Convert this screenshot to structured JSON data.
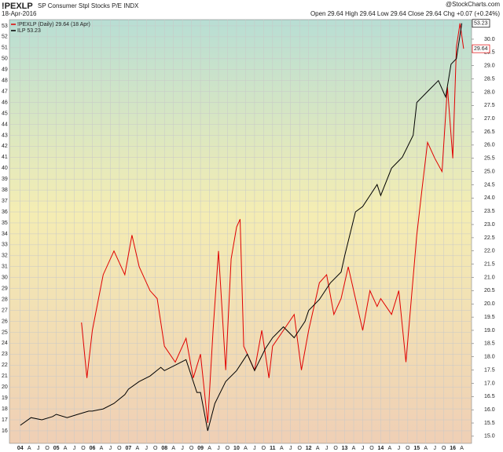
{
  "chart_data": {
    "type": "line",
    "title": "!PEXLP",
    "subtitle": "SP Consumer Stpl Stocks P/E INDX",
    "date": "18-Apr-2016",
    "quote": "Open 29.64  High 29.64  Low 29.64  Close 29.64  Chg +0.07 (+0.24%)",
    "watermark": "@StockCharts.com",
    "xlim": [
      2003.7,
      2016.52
    ],
    "xticks": [
      {
        "value": 2004,
        "label": "04"
      },
      {
        "value": 2004.25,
        "label": "A"
      },
      {
        "value": 2004.5,
        "label": "J"
      },
      {
        "value": 2004.75,
        "label": "O"
      },
      {
        "value": 2005,
        "label": "05"
      },
      {
        "value": 2005.25,
        "label": "A"
      },
      {
        "value": 2005.5,
        "label": "J"
      },
      {
        "value": 2005.75,
        "label": "O"
      },
      {
        "value": 2006,
        "label": "06"
      },
      {
        "value": 2006.25,
        "label": "A"
      },
      {
        "value": 2006.5,
        "label": "J"
      },
      {
        "value": 2006.75,
        "label": "O"
      },
      {
        "value": 2007,
        "label": "07"
      },
      {
        "value": 2007.25,
        "label": "A"
      },
      {
        "value": 2007.5,
        "label": "J"
      },
      {
        "value": 2007.75,
        "label": "O"
      },
      {
        "value": 2008,
        "label": "08"
      },
      {
        "value": 2008.25,
        "label": "A"
      },
      {
        "value": 2008.5,
        "label": "J"
      },
      {
        "value": 2008.75,
        "label": "O"
      },
      {
        "value": 2009,
        "label": "09"
      },
      {
        "value": 2009.25,
        "label": "A"
      },
      {
        "value": 2009.5,
        "label": "J"
      },
      {
        "value": 2009.75,
        "label": "O"
      },
      {
        "value": 2010,
        "label": "10"
      },
      {
        "value": 2010.25,
        "label": "A"
      },
      {
        "value": 2010.5,
        "label": "J"
      },
      {
        "value": 2010.75,
        "label": "O"
      },
      {
        "value": 2011,
        "label": "11"
      },
      {
        "value": 2011.25,
        "label": "A"
      },
      {
        "value": 2011.5,
        "label": "J"
      },
      {
        "value": 2011.75,
        "label": "O"
      },
      {
        "value": 2012,
        "label": "12"
      },
      {
        "value": 2012.25,
        "label": "A"
      },
      {
        "value": 2012.5,
        "label": "J"
      },
      {
        "value": 2012.75,
        "label": "O"
      },
      {
        "value": 2013,
        "label": "13"
      },
      {
        "value": 2013.25,
        "label": "A"
      },
      {
        "value": 2013.5,
        "label": "J"
      },
      {
        "value": 2013.75,
        "label": "O"
      },
      {
        "value": 2014,
        "label": "14"
      },
      {
        "value": 2014.25,
        "label": "A"
      },
      {
        "value": 2014.5,
        "label": "J"
      },
      {
        "value": 2014.75,
        "label": "O"
      },
      {
        "value": 2015,
        "label": "15"
      },
      {
        "value": 2015.25,
        "label": "A"
      },
      {
        "value": 2015.5,
        "label": "J"
      },
      {
        "value": 2015.75,
        "label": "O"
      },
      {
        "value": 2016,
        "label": "16"
      },
      {
        "value": 2016.25,
        "label": "A"
      }
    ],
    "ylim": [
      14.85,
      53.57
    ],
    "yticks": [
      16,
      17,
      18,
      19,
      20,
      21,
      22,
      23,
      24,
      25,
      26,
      27,
      28,
      29,
      30,
      31,
      32,
      33,
      34,
      35,
      36,
      37,
      38,
      39,
      40,
      41,
      42,
      43,
      44,
      45,
      46,
      47,
      48,
      49,
      50,
      51,
      52,
      53
    ],
    "y2lim": [
      14.73,
      30.74
    ],
    "y2ticks": [
      {
        "value": 15,
        "label": "15.0"
      },
      15.5,
      {
        "value": 16,
        "label": "16.0"
      },
      16.5,
      {
        "value": 17,
        "label": "17.0"
      },
      17.5,
      {
        "value": 18,
        "label": "18.0"
      },
      18.5,
      {
        "value": 19,
        "label": "19.0"
      },
      19.5,
      {
        "value": 20,
        "label": "20.0"
      },
      20.5,
      {
        "value": 21,
        "label": "21.0"
      },
      21.5,
      {
        "value": 22,
        "label": "22.0"
      },
      22.5,
      {
        "value": 23,
        "label": "23.0"
      },
      23.5,
      {
        "value": 24,
        "label": "24.0"
      },
      24.5,
      {
        "value": 25,
        "label": "25.0"
      },
      25.5,
      {
        "value": 26,
        "label": "26.0"
      },
      26.5,
      {
        "value": 27,
        "label": "27.0"
      },
      27.5,
      {
        "value": 28,
        "label": "28.0"
      },
      28.5,
      {
        "value": 29,
        "label": "29.0"
      },
      29.5,
      {
        "value": 30,
        "label": "30.0"
      }
    ],
    "grid": true,
    "legend": "top-left",
    "series": [
      {
        "name": "!PEXLP (Daily) 29.64 (18 Apr)",
        "color": "#e00000",
        "axis": "y2",
        "last_label": "29.64",
        "x": [
          2005.7,
          2005.85,
          2006.0,
          2006.3,
          2006.6,
          2006.9,
          2007.1,
          2007.3,
          2007.6,
          2007.8,
          2008.0,
          2008.3,
          2008.6,
          2008.8,
          2009.0,
          2009.2,
          2009.35,
          2009.5,
          2009.7,
          2009.85,
          2010.0,
          2010.1,
          2010.2,
          2010.5,
          2010.7,
          2010.9,
          2011.0,
          2011.3,
          2011.6,
          2011.8,
          2012.0,
          2012.3,
          2012.5,
          2012.7,
          2012.9,
          2013.1,
          2013.3,
          2013.5,
          2013.7,
          2013.9,
          2014.0,
          2014.3,
          2014.5,
          2014.7,
          2014.85,
          2015.0,
          2015.15,
          2015.3,
          2015.5,
          2015.7,
          2015.85,
          2016.0,
          2016.1,
          2016.2,
          2016.3
        ],
        "values": [
          19.3,
          17.2,
          19.0,
          21.1,
          22.0,
          21.1,
          22.6,
          21.4,
          20.5,
          20.2,
          18.4,
          17.8,
          18.7,
          17.2,
          18.1,
          15.5,
          19.0,
          22.0,
          17.5,
          21.7,
          22.9,
          23.2,
          18.4,
          17.5,
          19.0,
          17.2,
          18.4,
          19.0,
          19.6,
          17.5,
          19.0,
          20.8,
          21.1,
          19.6,
          20.2,
          21.4,
          20.2,
          19.0,
          20.5,
          19.9,
          20.2,
          19.6,
          20.5,
          17.8,
          20.2,
          22.6,
          24.4,
          26.1,
          25.5,
          25.0,
          28.2,
          25.5,
          29.7,
          30.6,
          29.64
        ]
      },
      {
        "name": "ILP 53.23",
        "color": "#000000",
        "last_label": "53.23",
        "x": [
          2004.0,
          2004.3,
          2004.6,
          2004.9,
          2005.0,
          2005.3,
          2005.6,
          2005.9,
          2006.0,
          2006.3,
          2006.6,
          2006.9,
          2007.0,
          2007.3,
          2007.6,
          2007.9,
          2008.0,
          2008.3,
          2008.6,
          2008.9,
          2009.0,
          2009.2,
          2009.4,
          2009.7,
          2010.0,
          2010.3,
          2010.5,
          2010.8,
          2011.0,
          2011.3,
          2011.6,
          2011.9,
          2012.0,
          2012.3,
          2012.6,
          2012.9,
          2013.0,
          2013.3,
          2013.5,
          2013.7,
          2013.9,
          2014.0,
          2014.3,
          2014.6,
          2014.9,
          2015.0,
          2015.3,
          2015.6,
          2015.8,
          2015.95,
          2016.1,
          2016.25
        ],
        "values": [
          16.5,
          17.2,
          17.0,
          17.3,
          17.5,
          17.2,
          17.5,
          17.8,
          17.8,
          18.0,
          18.5,
          19.3,
          19.8,
          20.5,
          21.0,
          21.8,
          21.5,
          22.0,
          22.5,
          19.5,
          19.5,
          16.0,
          18.5,
          20.5,
          21.5,
          23.0,
          21.5,
          23.5,
          24.5,
          25.5,
          24.5,
          26.0,
          27.0,
          28.0,
          29.5,
          30.5,
          32.0,
          36.0,
          36.5,
          37.5,
          38.5,
          37.5,
          40.0,
          41.0,
          43.0,
          46.0,
          47.0,
          48.0,
          46.5,
          49.5,
          50.0,
          53.23
        ]
      }
    ]
  }
}
